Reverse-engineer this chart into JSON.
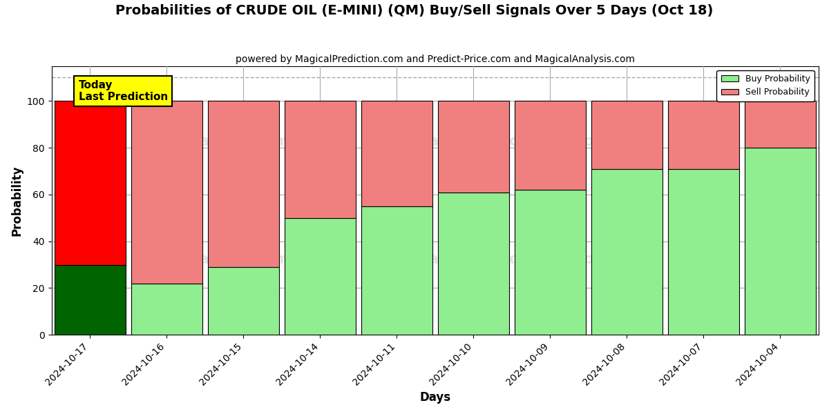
{
  "title": "Probabilities of CRUDE OIL (E-MINI) (QM) Buy/Sell Signals Over 5 Days (Oct 18)",
  "subtitle": "powered by MagicalPrediction.com and Predict-Price.com and MagicalAnalysis.com",
  "xlabel": "Days",
  "ylabel": "Probability",
  "categories": [
    "2024-10-17",
    "2024-10-16",
    "2024-10-15",
    "2024-10-14",
    "2024-10-11",
    "2024-10-10",
    "2024-10-09",
    "2024-10-08",
    "2024-10-07",
    "2024-10-04"
  ],
  "buy_values": [
    30,
    22,
    29,
    50,
    55,
    61,
    62,
    71,
    71,
    80
  ],
  "sell_values": [
    70,
    78,
    71,
    50,
    45,
    39,
    38,
    29,
    29,
    20
  ],
  "today_idx": 0,
  "buy_color_today": "#006400",
  "sell_color_today": "#FF0000",
  "buy_color_normal": "#90EE90",
  "sell_color_normal": "#F08080",
  "ylim": [
    0,
    115
  ],
  "yticks": [
    0,
    20,
    40,
    60,
    80,
    100
  ],
  "dashed_line_y": 110,
  "today_label": "Today\nLast Prediction",
  "legend_buy": "Buy Probability",
  "legend_sell": "Sell Probability",
  "background_color": "#ffffff",
  "grid_color": "#aaaaaa",
  "bar_width": 0.93
}
